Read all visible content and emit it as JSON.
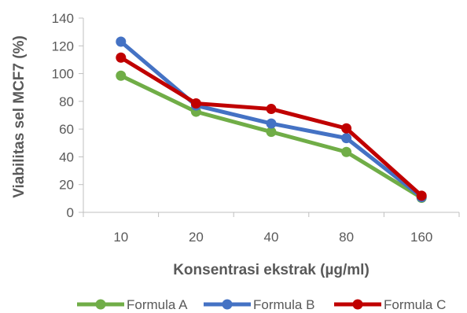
{
  "chart_data": {
    "type": "line",
    "title": "",
    "xlabel": "Konsentrasi  ekstrak (µg/ml)",
    "ylabel": "Viabilitas  sel MCF7 (%)",
    "categories": [
      "10",
      "20",
      "40",
      "80",
      "160"
    ],
    "ylim": [
      0,
      140
    ],
    "yticks": [
      0,
      20,
      40,
      60,
      80,
      100,
      120,
      140
    ],
    "grid": false,
    "legend_position": "bottom",
    "series": [
      {
        "name": "Formula A",
        "color": "#70ad47",
        "values": [
          98.5,
          72.5,
          58,
          43.5,
          10.5
        ]
      },
      {
        "name": "Formula B",
        "color": "#4472c4",
        "values": [
          123,
          77,
          64,
          53.5,
          11
        ]
      },
      {
        "name": "Formula C",
        "color": "#c00000",
        "values": [
          111.5,
          78.5,
          74.5,
          60.5,
          12
        ]
      }
    ]
  }
}
